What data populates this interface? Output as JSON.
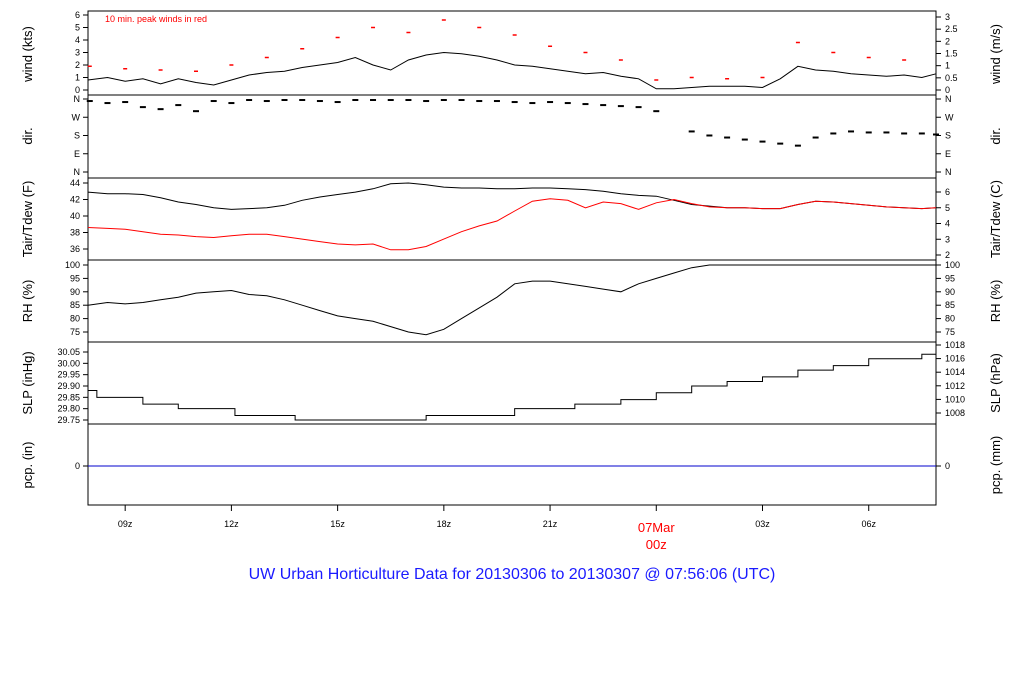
{
  "title": "UW Urban Horticulture Data for 20130306  to  20130307 @ 07:56:06  (UTC)",
  "colors": {
    "title": "#1a1aff",
    "date": "#ff0000",
    "peak": "#ff0000",
    "dew": "#ff0000",
    "line": "#000000",
    "pcp": "#0000cc"
  },
  "chart_data": [
    {
      "type": "line",
      "name": "wind",
      "ylabel_left": "wind (kts)",
      "ylabel_right": "wind (m/s)",
      "ylim": [
        0,
        6
      ],
      "left_ticks": [
        "0",
        "1",
        "2",
        "3",
        "4",
        "5",
        "6"
      ],
      "right_ticks": [
        "0",
        "0.5",
        "1",
        "1.5",
        "2",
        "2.5",
        "3"
      ],
      "annotation": "10 min. peak winds in red",
      "series": [
        {
          "name": "wind",
          "x": [
            7.95,
            8.5,
            9,
            9.5,
            10,
            10.5,
            11,
            11.5,
            12,
            12.5,
            13,
            13.5,
            14,
            14.5,
            15,
            15.5,
            16,
            16.5,
            17,
            17.5,
            18,
            18.5,
            19,
            19.5,
            20,
            20.5,
            21,
            21.5,
            22,
            22.5,
            23,
            23.5,
            24,
            24.5,
            25,
            25.5,
            26,
            26.5,
            27,
            27.5,
            28,
            28.5,
            29,
            29.5,
            30,
            30.5,
            31,
            31.5,
            31.9
          ],
          "y": [
            0.8,
            1.0,
            0.7,
            0.9,
            0.5,
            0.9,
            0.6,
            0.4,
            0.8,
            1.2,
            1.4,
            1.5,
            1.8,
            2.0,
            2.2,
            2.6,
            2.0,
            1.6,
            2.4,
            2.8,
            3.0,
            2.9,
            2.7,
            2.4,
            2.0,
            1.9,
            1.7,
            1.5,
            1.3,
            1.4,
            1.1,
            0.9,
            0.1,
            0.1,
            0.2,
            0.3,
            0.3,
            0.3,
            0.2,
            0.9,
            1.9,
            1.6,
            1.5,
            1.3,
            1.2,
            1.1,
            1.2,
            1.0,
            1.3
          ]
        },
        {
          "name": "10 min. peak winds",
          "x": [
            8,
            9,
            10,
            11,
            12,
            13,
            14,
            15,
            16,
            17,
            18,
            19,
            20,
            21,
            22,
            23,
            24,
            25,
            26,
            27,
            28,
            29,
            30,
            31
          ],
          "y": [
            1.9,
            1.7,
            1.6,
            1.5,
            2.0,
            2.6,
            3.3,
            4.2,
            5.0,
            4.6,
            5.6,
            5.0,
            4.4,
            3.5,
            3.0,
            2.4,
            0.8,
            1.0,
            0.9,
            1.0,
            3.8,
            3.0,
            2.6,
            2.4
          ]
        }
      ]
    },
    {
      "type": "scatter",
      "name": "dir",
      "ylabel_left": "dir.",
      "ylabel_right": "dir.",
      "left_ticks": [
        "N",
        "E",
        "S",
        "W",
        "N"
      ],
      "right_ticks": [
        "N",
        "E",
        "S",
        "W",
        "N"
      ],
      "series": [
        {
          "name": "direction",
          "x": [
            8,
            8.5,
            9,
            9.5,
            10,
            10.5,
            11,
            11.5,
            12,
            12.5,
            13,
            13.5,
            14,
            14.5,
            15,
            15.5,
            16,
            16.5,
            17,
            17.5,
            18,
            18.5,
            19,
            19.5,
            20,
            20.5,
            21,
            21.5,
            22,
            22.5,
            23,
            23.5,
            24,
            25,
            25.5,
            26,
            26.5,
            27,
            27.5,
            28,
            28.5,
            29,
            29.5,
            30,
            30.5,
            31,
            31.5,
            31.9
          ],
          "y": [
            350,
            340,
            345,
            320,
            310,
            330,
            300,
            350,
            340,
            355,
            350,
            355,
            355,
            350,
            345,
            355,
            355,
            355,
            355,
            350,
            355,
            355,
            350,
            350,
            345,
            340,
            345,
            340,
            335,
            330,
            325,
            320,
            300,
            200,
            180,
            170,
            160,
            150,
            140,
            130,
            170,
            190,
            200,
            195,
            195,
            190,
            190,
            185
          ]
        }
      ]
    },
    {
      "type": "line",
      "name": "temp",
      "ylabel_left": "Tair/Tdew (F)",
      "ylabel_right": "Tair/Tdew (C)",
      "left_ticks": [
        "36",
        "38",
        "40",
        "42",
        "44"
      ],
      "right_ticks": [
        "2",
        "3",
        "4",
        "5",
        "6"
      ],
      "series": [
        {
          "name": "Tair",
          "x": [
            7.95,
            8.5,
            9,
            9.5,
            10,
            10.5,
            11,
            11.5,
            12,
            12.5,
            13,
            13.5,
            14,
            14.5,
            15,
            15.5,
            16,
            16.5,
            17,
            17.5,
            18,
            18.5,
            19,
            19.5,
            20,
            20.5,
            21,
            21.5,
            22,
            22.5,
            23,
            23.5,
            24,
            24.5,
            25,
            25.5,
            26,
            26.5,
            27,
            27.5,
            28,
            28.5,
            29,
            29.5,
            30,
            30.5,
            31,
            31.5,
            31.9
          ],
          "y": [
            42.9,
            42.7,
            42.7,
            42.6,
            42.2,
            41.7,
            41.4,
            41.0,
            40.8,
            40.9,
            41.0,
            41.3,
            41.9,
            42.3,
            42.6,
            42.9,
            43.3,
            43.9,
            44.0,
            43.8,
            43.5,
            43.4,
            43.4,
            43.3,
            43.3,
            43.4,
            43.4,
            43.3,
            43.2,
            43.0,
            42.7,
            42.5,
            42.4,
            41.9,
            41.4,
            41.2,
            41.0,
            41.0,
            40.9,
            40.9,
            41.4,
            41.8,
            41.7,
            41.5,
            41.3,
            41.1,
            41.0,
            40.9,
            41.0
          ]
        },
        {
          "name": "Tdew",
          "x": [
            7.95,
            8.5,
            9,
            9.5,
            10,
            10.5,
            11,
            11.5,
            12,
            12.5,
            13,
            13.5,
            14,
            14.5,
            15,
            15.5,
            16,
            16.5,
            17,
            17.5,
            18,
            18.5,
            19,
            19.5,
            20,
            20.5,
            21,
            21.5,
            22,
            22.5,
            23,
            23.5,
            24,
            24.5,
            25,
            25.5,
            26,
            26.5,
            27,
            27.5,
            28,
            28.5,
            29,
            29.5,
            30,
            30.5,
            31,
            31.5,
            31.9
          ],
          "y": [
            38.6,
            38.5,
            38.4,
            38.1,
            37.8,
            37.7,
            37.5,
            37.4,
            37.6,
            37.8,
            37.8,
            37.5,
            37.2,
            36.9,
            36.6,
            36.5,
            36.6,
            35.9,
            35.9,
            36.3,
            37.2,
            38.1,
            38.8,
            39.4,
            40.6,
            41.8,
            42.1,
            41.9,
            41.0,
            41.7,
            41.5,
            40.8,
            41.6,
            42.0,
            41.5,
            41.1,
            41.0,
            41.0,
            40.9,
            40.9,
            41.4,
            41.8,
            41.7,
            41.5,
            41.3,
            41.1,
            41.0,
            40.9,
            41.0
          ]
        }
      ]
    },
    {
      "type": "line",
      "name": "rh",
      "ylabel_left": "RH (%)",
      "ylabel_right": "RH (%)",
      "ylim": [
        72,
        100
      ],
      "left_ticks": [
        "75",
        "80",
        "85",
        "90",
        "95",
        "100"
      ],
      "right_ticks": [
        "75",
        "80",
        "85",
        "90",
        "95",
        "100"
      ],
      "series": [
        {
          "name": "RH",
          "x": [
            7.95,
            8.5,
            9,
            9.5,
            10,
            10.5,
            11,
            11.5,
            12,
            12.5,
            13,
            13.5,
            14,
            14.5,
            15,
            15.5,
            16,
            16.5,
            17,
            17.5,
            18,
            18.5,
            19,
            19.5,
            20,
            20.5,
            21,
            21.5,
            22,
            22.5,
            23,
            23.5,
            24,
            24.5,
            25,
            25.5,
            26,
            26.5,
            27,
            27.5,
            28,
            28.5,
            29,
            29.5,
            30,
            30.5,
            31,
            31.5,
            31.9
          ],
          "y": [
            85,
            86,
            85.5,
            86,
            87,
            88,
            89.5,
            90,
            90.5,
            89,
            88.5,
            87,
            85,
            83,
            81,
            80,
            79,
            77,
            75,
            74,
            76,
            80,
            84,
            88,
            93,
            94,
            94,
            93,
            92,
            91,
            90,
            93,
            95,
            97,
            99,
            100,
            100,
            100,
            100,
            100,
            100,
            100,
            100,
            100,
            100,
            100,
            100,
            100,
            100
          ]
        }
      ]
    },
    {
      "type": "line",
      "name": "slp",
      "ylabel_left": "SLP (inHg)",
      "ylabel_right": "SLP (hPa)",
      "ylim": [
        29.74,
        30.06
      ],
      "left_ticks": [
        "29.75",
        "29.80",
        "29.85",
        "29.90",
        "29.95",
        "30.00",
        "30.05"
      ],
      "right_ticks": [
        "1008",
        "1010",
        "1012",
        "1014",
        "1016",
        "1018"
      ],
      "series": [
        {
          "name": "SLP",
          "x": [
            7.95,
            8.2,
            9.5,
            10.5,
            12.1,
            13.8,
            17.5,
            20.0,
            21.7,
            23.0,
            24.0,
            25.0,
            26.0,
            27.0,
            28.0,
            29.0,
            30.0,
            31.5,
            31.9
          ],
          "y": [
            29.88,
            29.85,
            29.82,
            29.8,
            29.77,
            29.75,
            29.77,
            29.8,
            29.82,
            29.84,
            29.87,
            29.9,
            29.92,
            29.94,
            29.97,
            29.99,
            30.02,
            30.04,
            30.06
          ]
        }
      ]
    },
    {
      "type": "line",
      "name": "pcp",
      "ylabel_left": "pcp. (in)",
      "ylabel_right": "pcp. (mm)",
      "left_ticks": [
        "0"
      ],
      "right_ticks": [
        "0"
      ],
      "series": [
        {
          "name": "pcp",
          "x": [
            7.95,
            31.9
          ],
          "y": [
            0,
            0
          ]
        }
      ]
    }
  ],
  "xaxis": {
    "xlim": [
      7.95,
      31.9
    ],
    "ticks": [
      9,
      12,
      15,
      18,
      21,
      24,
      27,
      30
    ],
    "labels": [
      "09z",
      "12z",
      "15z",
      "18z",
      "21z",
      "",
      "03z",
      "06z"
    ],
    "date_label_line1": "07Mar",
    "date_label_line2": "00z",
    "date_label_x": 24
  }
}
